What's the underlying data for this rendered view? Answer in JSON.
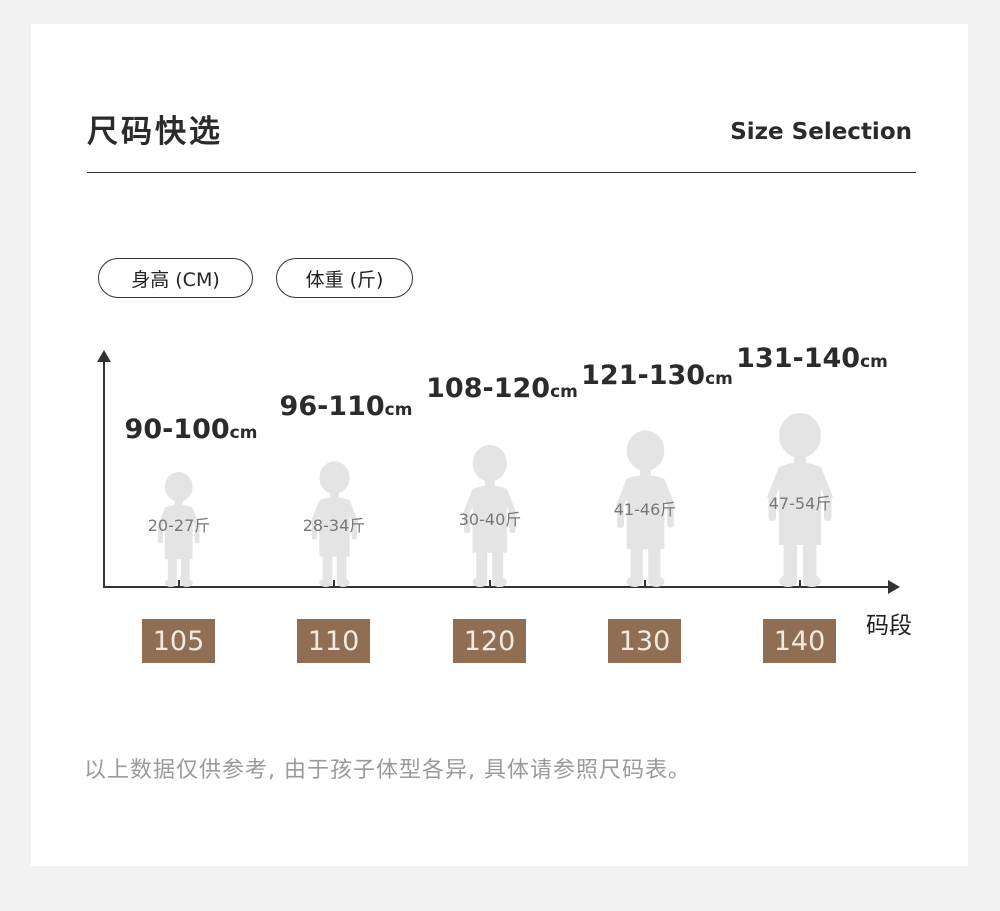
{
  "header": {
    "title": "尺码快选",
    "subtitle": "Size Selection"
  },
  "legend": {
    "height_pill": "身高 (CM)",
    "weight_pill": "体重 (斤)"
  },
  "axis": {
    "x_label": "码段"
  },
  "sizes": [
    {
      "size": "105",
      "height": "90-100",
      "height_unit": "cm",
      "weight": "20-27斤"
    },
    {
      "size": "110",
      "height": "96-110",
      "height_unit": "cm",
      "weight": "28-34斤"
    },
    {
      "size": "120",
      "height": "108-120",
      "height_unit": "cm",
      "weight": "30-40斤"
    },
    {
      "size": "130",
      "height": "121-130",
      "height_unit": "cm",
      "weight": "41-46斤"
    },
    {
      "size": "140",
      "height": "131-140",
      "height_unit": "cm",
      "weight": "47-54斤"
    }
  ],
  "note": "以上数据仅供参考, 由于孩子体型各异, 具体请参照尺码表。",
  "colors": {
    "size_box": "#8f6e53",
    "silhouette": "#e4e4e4",
    "background": "#f2f2f2"
  }
}
